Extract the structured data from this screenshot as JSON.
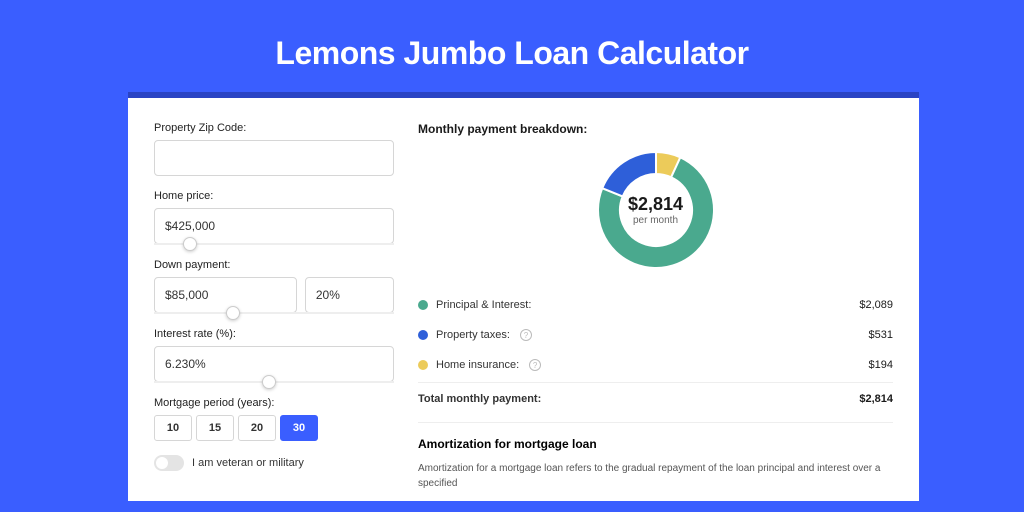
{
  "page": {
    "title": "Lemons Jumbo Loan Calculator",
    "background_color": "#3a5eff",
    "panel_shadow_color": "#2a44c4"
  },
  "form": {
    "zip": {
      "label": "Property Zip Code:",
      "value": ""
    },
    "home_price": {
      "label": "Home price:",
      "value": "$425,000",
      "slider_pct": 12
    },
    "down_payment": {
      "label": "Down payment:",
      "amount": "$85,000",
      "percent": "20%",
      "slider_pct": 30
    },
    "interest_rate": {
      "label": "Interest rate (%):",
      "value": "6.230%",
      "slider_pct": 45
    },
    "period": {
      "label": "Mortgage period (years):",
      "options": [
        "10",
        "15",
        "20",
        "30"
      ],
      "selected": "30"
    },
    "veteran_toggle": {
      "label": "I am veteran or military",
      "checked": false
    }
  },
  "breakdown": {
    "title": "Monthly payment breakdown:",
    "donut": {
      "center_amount": "$2,814",
      "center_sub": "per month",
      "size": 120,
      "inner_radius": 36,
      "outer_radius": 58,
      "segments": [
        {
          "label": "Principal & Interest",
          "value_label": "$2,089",
          "value": 2089,
          "color": "#4aa98e"
        },
        {
          "label": "Property taxes",
          "value_label": "$531",
          "value": 531,
          "color": "#2e5fd9"
        },
        {
          "label": "Home insurance",
          "value_label": "$194",
          "value": 194,
          "color": "#eccb5a"
        }
      ]
    },
    "legend": {
      "pi": {
        "label": "Principal & Interest:",
        "value": "$2,089",
        "color": "#4aa98e"
      },
      "taxes": {
        "label": "Property taxes:",
        "value": "$531",
        "color": "#2e5fd9",
        "info": true
      },
      "insurance": {
        "label": "Home insurance:",
        "value": "$194",
        "color": "#eccb5a",
        "info": true
      },
      "total": {
        "label": "Total monthly payment:",
        "value": "$2,814"
      }
    }
  },
  "amortization": {
    "title": "Amortization for mortgage loan",
    "text": "Amortization for a mortgage loan refers to the gradual repayment of the loan principal and interest over a specified"
  }
}
